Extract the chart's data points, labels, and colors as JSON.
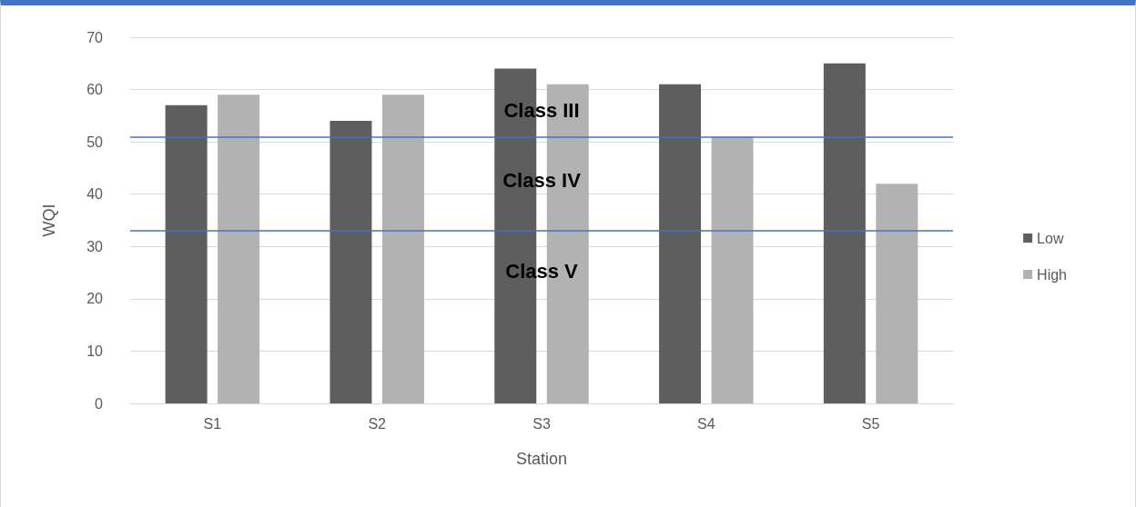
{
  "chart_data": {
    "type": "bar",
    "xlabel": "Station",
    "ylabel": "WQI",
    "categories": [
      "S1",
      "S2",
      "S3",
      "S4",
      "S5"
    ],
    "series": [
      {
        "name": "Low",
        "color": "#5e5e5e",
        "values": [
          57,
          54,
          64,
          61,
          65
        ]
      },
      {
        "name": "High",
        "color": "#b2b2b2",
        "values": [
          59,
          59,
          61,
          51,
          42
        ]
      }
    ],
    "ylim": [
      0,
      70
    ],
    "yticks": [
      0,
      10,
      20,
      30,
      40,
      50,
      60,
      70
    ],
    "grid": "y",
    "legend": "right",
    "ref_lines": [
      {
        "axis": "y",
        "value": 51,
        "color": "#4472c4"
      },
      {
        "axis": "y",
        "value": 33,
        "color": "#4472c4"
      }
    ],
    "annotations": [
      "Class III",
      "Class IV",
      "Class V"
    ]
  }
}
